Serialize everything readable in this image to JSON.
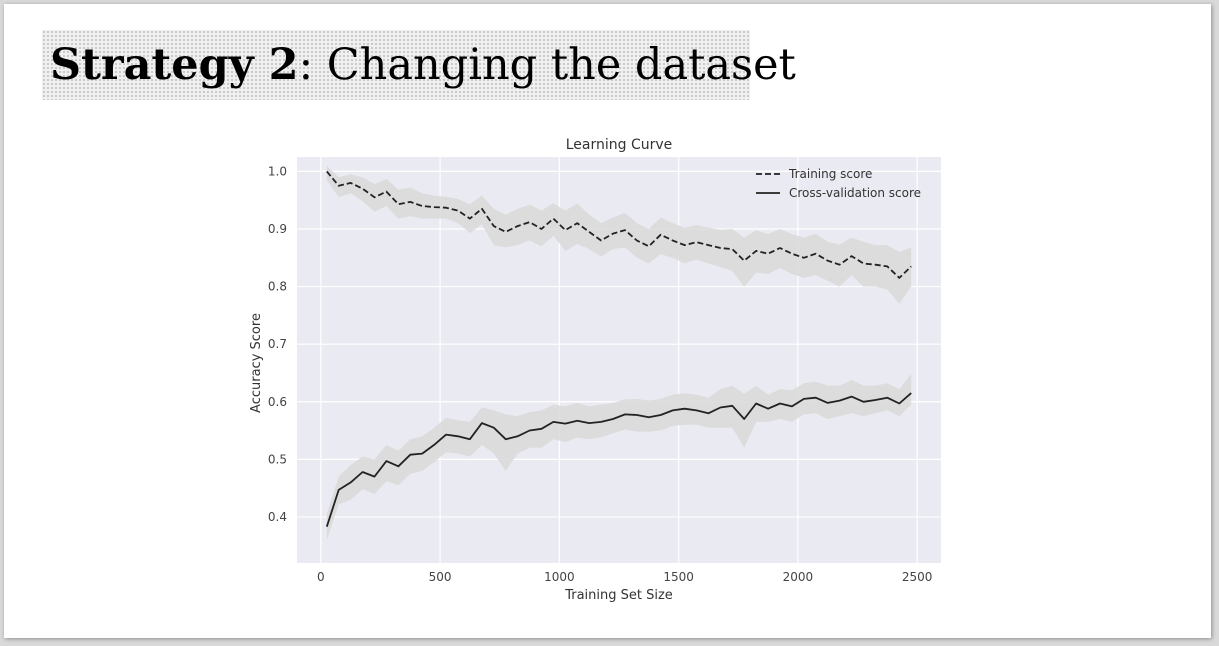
{
  "slide": {
    "title_bold": "Strategy 2",
    "title_rest": ": Changing the dataset"
  },
  "chart_data": {
    "type": "line",
    "title": "Learning Curve",
    "xlabel": "Training Set Size",
    "ylabel": "Accuracy Score",
    "xlim": [
      -100,
      2600
    ],
    "ylim": [
      0.32,
      1.025
    ],
    "xticks": [
      0,
      500,
      1000,
      1500,
      2000,
      2500
    ],
    "yticks": [
      0.4,
      0.5,
      0.6,
      0.7,
      0.8,
      0.9,
      1.0
    ],
    "xtick_labels": [
      "0",
      "500",
      "1000",
      "1500",
      "2000",
      "2500"
    ],
    "ytick_labels": [
      "0.4",
      "0.5",
      "0.6",
      "0.7",
      "0.8",
      "0.9",
      "1.0"
    ],
    "grid": true,
    "legend_position": "top-right",
    "colors": {
      "plot_background": "#eaeaf2",
      "grid": "#ffffff",
      "line": "#222222",
      "band": "#dadada"
    },
    "x": [
      25,
      75,
      125,
      175,
      225,
      275,
      325,
      375,
      425,
      475,
      525,
      575,
      625,
      675,
      725,
      775,
      825,
      875,
      925,
      975,
      1025,
      1075,
      1125,
      1175,
      1225,
      1275,
      1325,
      1375,
      1425,
      1475,
      1525,
      1575,
      1625,
      1675,
      1725,
      1775,
      1825,
      1875,
      1925,
      1975,
      2025,
      2075,
      2125,
      2175,
      2225,
      2275,
      2325,
      2375,
      2425,
      2475
    ],
    "series": [
      {
        "name": "Training score",
        "style": "dashed",
        "values": [
          1.0,
          0.975,
          0.98,
          0.97,
          0.955,
          0.965,
          0.943,
          0.947,
          0.94,
          0.938,
          0.937,
          0.932,
          0.918,
          0.935,
          0.905,
          0.895,
          0.905,
          0.912,
          0.9,
          0.918,
          0.898,
          0.91,
          0.895,
          0.88,
          0.892,
          0.898,
          0.88,
          0.87,
          0.89,
          0.88,
          0.872,
          0.877,
          0.872,
          0.867,
          0.865,
          0.845,
          0.862,
          0.857,
          0.867,
          0.857,
          0.85,
          0.857,
          0.845,
          0.838,
          0.853,
          0.84,
          0.838,
          0.835,
          0.815,
          0.835
        ],
        "band_lower": [
          0.985,
          0.955,
          0.962,
          0.948,
          0.93,
          0.94,
          0.918,
          0.922,
          0.918,
          0.918,
          0.918,
          0.91,
          0.893,
          0.908,
          0.872,
          0.868,
          0.872,
          0.88,
          0.87,
          0.888,
          0.862,
          0.874,
          0.865,
          0.852,
          0.865,
          0.868,
          0.85,
          0.84,
          0.856,
          0.85,
          0.84,
          0.847,
          0.84,
          0.834,
          0.827,
          0.8,
          0.824,
          0.822,
          0.832,
          0.822,
          0.815,
          0.82,
          0.81,
          0.8,
          0.82,
          0.8,
          0.8,
          0.795,
          0.77,
          0.8
        ],
        "band_upper": [
          1.01,
          0.99,
          0.995,
          0.99,
          0.978,
          0.987,
          0.968,
          0.972,
          0.962,
          0.958,
          0.956,
          0.952,
          0.943,
          0.958,
          0.935,
          0.925,
          0.935,
          0.942,
          0.932,
          0.945,
          0.932,
          0.944,
          0.925,
          0.91,
          0.92,
          0.928,
          0.91,
          0.9,
          0.92,
          0.91,
          0.902,
          0.907,
          0.902,
          0.899,
          0.9,
          0.885,
          0.898,
          0.891,
          0.9,
          0.891,
          0.885,
          0.892,
          0.878,
          0.873,
          0.885,
          0.878,
          0.872,
          0.872,
          0.86,
          0.868
        ]
      },
      {
        "name": "Cross-validation score",
        "style": "solid",
        "values": [
          0.383,
          0.447,
          0.46,
          0.478,
          0.47,
          0.497,
          0.488,
          0.508,
          0.51,
          0.525,
          0.543,
          0.54,
          0.535,
          0.563,
          0.555,
          0.535,
          0.54,
          0.55,
          0.553,
          0.565,
          0.562,
          0.567,
          0.563,
          0.565,
          0.57,
          0.578,
          0.577,
          0.573,
          0.577,
          0.585,
          0.588,
          0.585,
          0.58,
          0.59,
          0.593,
          0.57,
          0.597,
          0.588,
          0.597,
          0.592,
          0.605,
          0.607,
          0.598,
          0.602,
          0.609,
          0.6,
          0.603,
          0.607,
          0.597,
          0.615
        ],
        "band_lower": [
          0.36,
          0.422,
          0.43,
          0.448,
          0.44,
          0.462,
          0.455,
          0.475,
          0.48,
          0.495,
          0.512,
          0.51,
          0.505,
          0.525,
          0.51,
          0.48,
          0.51,
          0.52,
          0.52,
          0.535,
          0.53,
          0.538,
          0.535,
          0.538,
          0.545,
          0.552,
          0.548,
          0.548,
          0.55,
          0.558,
          0.56,
          0.56,
          0.555,
          0.555,
          0.555,
          0.52,
          0.565,
          0.565,
          0.57,
          0.565,
          0.578,
          0.58,
          0.57,
          0.575,
          0.58,
          0.575,
          0.58,
          0.585,
          0.575,
          0.595
        ],
        "band_upper": [
          0.405,
          0.47,
          0.49,
          0.505,
          0.5,
          0.525,
          0.515,
          0.535,
          0.54,
          0.555,
          0.572,
          0.568,
          0.565,
          0.59,
          0.585,
          0.578,
          0.575,
          0.582,
          0.585,
          0.595,
          0.592,
          0.598,
          0.592,
          0.595,
          0.598,
          0.604,
          0.605,
          0.602,
          0.605,
          0.612,
          0.615,
          0.612,
          0.607,
          0.622,
          0.628,
          0.614,
          0.628,
          0.612,
          0.622,
          0.62,
          0.632,
          0.635,
          0.628,
          0.628,
          0.638,
          0.628,
          0.628,
          0.632,
          0.622,
          0.648
        ]
      }
    ]
  }
}
